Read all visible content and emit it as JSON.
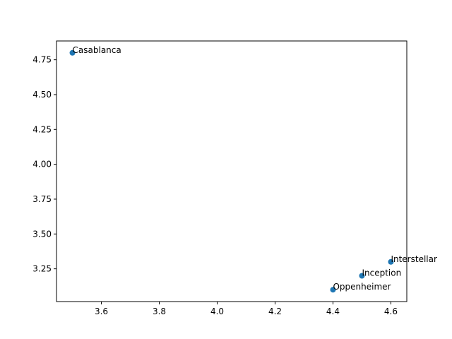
{
  "chart_data": {
    "type": "scatter",
    "title": "",
    "xlabel": "",
    "ylabel": "",
    "grid": false,
    "marker_color": "#1f77b4",
    "xlim": [
      3.445,
      4.655
    ],
    "ylim": [
      3.015,
      4.885
    ],
    "xticks": [
      3.6,
      3.8,
      4.0,
      4.2,
      4.4,
      4.6
    ],
    "xtick_labels": [
      "3.6",
      "3.8",
      "4.0",
      "4.2",
      "4.4",
      "4.6"
    ],
    "yticks": [
      3.25,
      3.5,
      3.75,
      4.0,
      4.25,
      4.5,
      4.75
    ],
    "ytick_labels": [
      "3.25",
      "3.50",
      "3.75",
      "4.00",
      "4.25",
      "4.50",
      "4.75"
    ],
    "points": [
      {
        "label": "Casablanca",
        "x": 3.5,
        "y": 4.8
      },
      {
        "label": "Interstellar",
        "x": 4.6,
        "y": 3.3
      },
      {
        "label": "Inception",
        "x": 4.5,
        "y": 3.2
      },
      {
        "label": "Oppenheimer",
        "x": 4.4,
        "y": 3.1
      }
    ]
  }
}
